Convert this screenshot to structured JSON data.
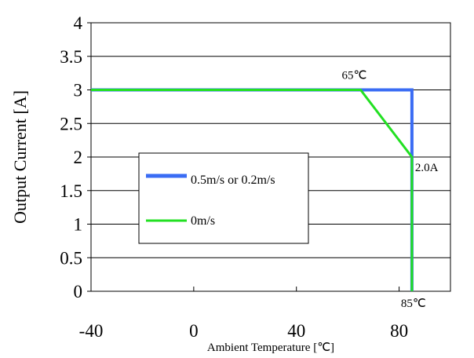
{
  "chart_data": {
    "type": "line",
    "xlabel": "Ambient Temperature [℃]",
    "ylabel": "Output Current [A]",
    "xlim": [
      -40,
      100
    ],
    "ylim": [
      0,
      4
    ],
    "x_ticks": [
      -40,
      0,
      40,
      80
    ],
    "y_ticks": [
      0,
      0.5,
      1,
      1.5,
      2,
      2.5,
      3,
      3.5,
      4
    ],
    "y_tick_labels": [
      "0",
      "0.5",
      "1",
      "1.5",
      "2",
      "2.5",
      "3",
      "3.5",
      "4"
    ],
    "grid": "horizontal",
    "series": [
      {
        "name": "0.5m/s or 0.2m/s",
        "color": "#3a6cf4",
        "points": [
          [
            -40,
            3
          ],
          [
            85,
            3
          ],
          [
            85,
            0
          ]
        ]
      },
      {
        "name": "0m/s",
        "color": "#22e022",
        "points": [
          [
            -40,
            3
          ],
          [
            65,
            3
          ],
          [
            85,
            2
          ],
          [
            85,
            0
          ]
        ]
      }
    ],
    "annotations": [
      {
        "text": "65℃",
        "x": 65,
        "y": 3
      },
      {
        "text": "2.0A",
        "x": 85,
        "y": 2
      },
      {
        "text": "85℃",
        "x": 85,
        "y": 0
      }
    ],
    "legend": {
      "placement": "center-left"
    }
  }
}
